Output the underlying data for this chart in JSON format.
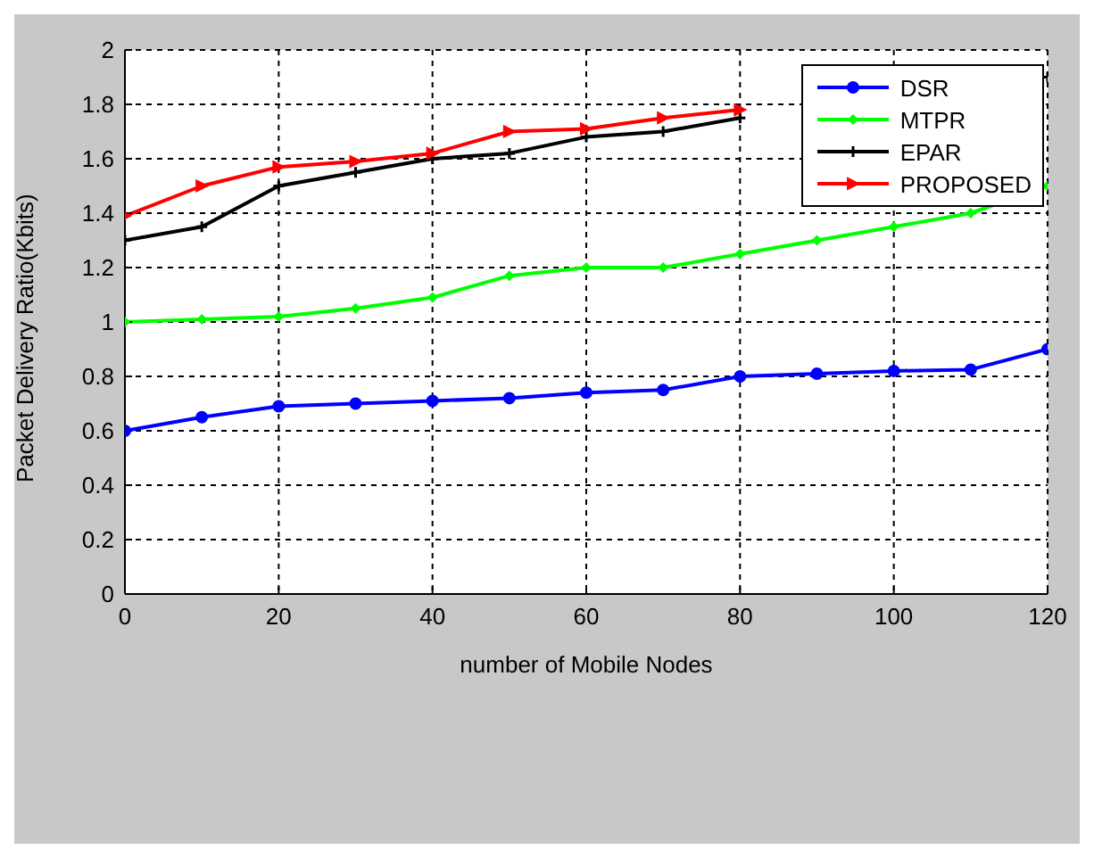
{
  "chart_data": {
    "type": "line",
    "xlabel": "number of Mobile Nodes",
    "ylabel": "Packet Delivery Ratio(Kbits)",
    "x": [
      0,
      10,
      20,
      30,
      40,
      50,
      60,
      70,
      80,
      90,
      100,
      110,
      120
    ],
    "series": [
      {
        "name": "DSR",
        "color": "#0000ff",
        "marker": "circle",
        "values": [
          0.6,
          0.65,
          0.69,
          0.7,
          0.71,
          0.72,
          0.74,
          0.75,
          0.8,
          0.81,
          0.82,
          0.825,
          0.9
        ]
      },
      {
        "name": "MTPR",
        "color": "#00ff00",
        "marker": "diamond",
        "values": [
          1.0,
          1.01,
          1.02,
          1.05,
          1.09,
          1.17,
          1.2,
          1.2,
          1.25,
          1.3,
          1.35,
          1.4,
          1.5
        ]
      },
      {
        "name": "EPAR",
        "color": "#000000",
        "marker": "cross",
        "values": [
          1.3,
          1.35,
          1.5,
          1.55,
          1.6,
          1.62,
          1.68,
          1.7,
          1.75,
          null,
          null,
          null,
          1.9
        ]
      },
      {
        "name": "PROPOSED",
        "color": "#ff0000",
        "marker": "triangle",
        "values": [
          1.39,
          1.5,
          1.57,
          1.59,
          1.62,
          1.7,
          1.71,
          1.75,
          1.78,
          null,
          null,
          null,
          null
        ]
      }
    ],
    "xlim": [
      0,
      120
    ],
    "xticks": [
      0,
      20,
      40,
      60,
      80,
      100,
      120
    ],
    "ylim": [
      0,
      2
    ],
    "yticks": [
      0,
      0.2,
      0.4,
      0.6,
      0.8,
      1,
      1.2,
      1.4,
      1.6,
      1.8,
      2
    ],
    "grid": true,
    "legend": "top right",
    "line_style": "solid"
  }
}
